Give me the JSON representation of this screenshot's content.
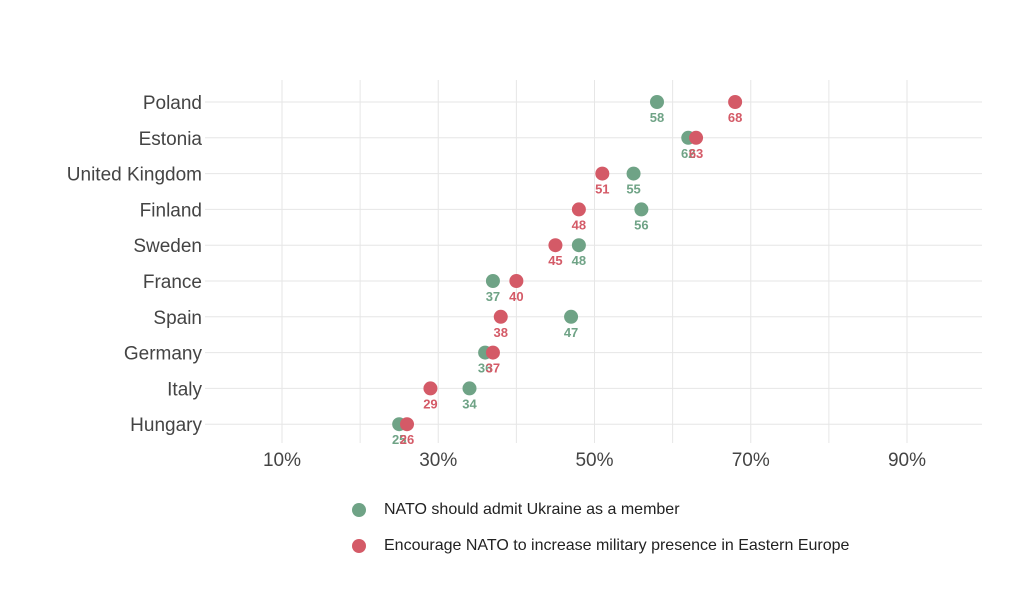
{
  "chart_data": {
    "type": "scatter",
    "categories": [
      "Poland",
      "Estonia",
      "United Kingdom",
      "Finland",
      "Sweden",
      "France",
      "Spain",
      "Germany",
      "Italy",
      "Hungary"
    ],
    "series": [
      {
        "name": "NATO should admit Ukraine as a member",
        "color": "#6fa386",
        "values": [
          58,
          62,
          55,
          56,
          48,
          37,
          47,
          36,
          34,
          25
        ]
      },
      {
        "name": "Encourage NATO to increase military presence in Eastern Europe",
        "color": "#d45a67",
        "values": [
          68,
          63,
          51,
          48,
          45,
          40,
          38,
          37,
          29,
          26
        ]
      }
    ],
    "xlim": [
      0,
      100
    ],
    "x_ticks": [
      10,
      30,
      50,
      70,
      90
    ],
    "x_tick_labels": [
      "10%",
      "30%",
      "50%",
      "70%",
      "90%"
    ],
    "grid": true,
    "legend_position": "bottom",
    "title": "",
    "xlabel": "",
    "ylabel": ""
  }
}
